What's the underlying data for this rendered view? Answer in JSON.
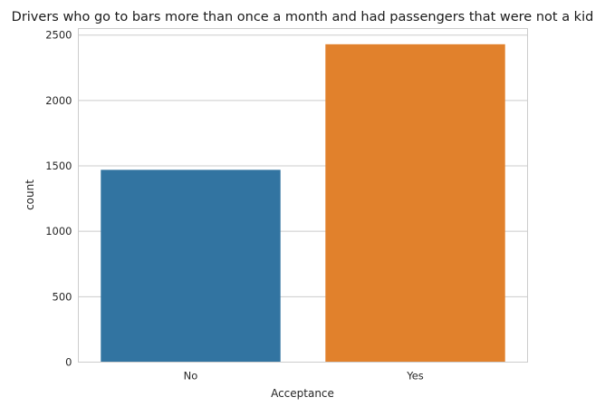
{
  "chart_data": {
    "type": "bar",
    "title": "Drivers who go to bars more than once a month and had passengers that were not a kid",
    "xlabel": "Acceptance",
    "ylabel": "count",
    "categories": [
      "No",
      "Yes"
    ],
    "values": [
      1470,
      2430
    ],
    "colors": [
      "#3274a1",
      "#e1812c"
    ],
    "ylim": [
      0,
      2550
    ],
    "yticks": [
      0,
      500,
      1000,
      1500,
      2000,
      2500
    ],
    "grid": "horizontal",
    "legend": "none"
  }
}
